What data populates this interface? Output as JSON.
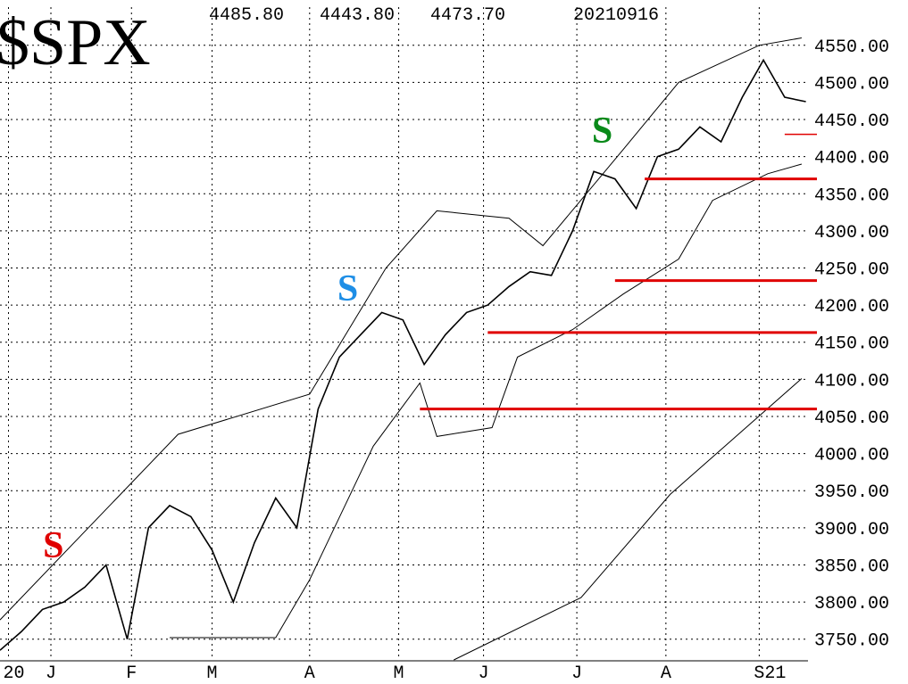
{
  "chart_data": {
    "type": "line",
    "title": "$SPX",
    "header": [
      "4485.80",
      "4443.80",
      "4473.70",
      "20210916"
    ],
    "xlim": [
      -12,
      178.5
    ],
    "ylim": [
      3722,
      4611
    ],
    "grid": true,
    "xticks": [
      {
        "value": -10,
        "label": "20"
      },
      {
        "value": 0,
        "label": "J"
      },
      {
        "value": 19,
        "label": "F"
      },
      {
        "value": 38,
        "label": "M"
      },
      {
        "value": 61,
        "label": "A"
      },
      {
        "value": 82,
        "label": "M"
      },
      {
        "value": 102,
        "label": "J"
      },
      {
        "value": 124,
        "label": "J"
      },
      {
        "value": 145,
        "label": "A"
      },
      {
        "value": 167,
        "label": "S21"
      }
    ],
    "yticks": [
      {
        "value": 3750,
        "label": "3750.00"
      },
      {
        "value": 3800,
        "label": "3800.00"
      },
      {
        "value": 3850,
        "label": "3850.00"
      },
      {
        "value": 3900,
        "label": "3900.00"
      },
      {
        "value": 3950,
        "label": "3950.00"
      },
      {
        "value": 4000,
        "label": "4000.00"
      },
      {
        "value": 4050,
        "label": "4050.00"
      },
      {
        "value": 4100,
        "label": "4100.00"
      },
      {
        "value": 4150,
        "label": "4150.00"
      },
      {
        "value": 4200,
        "label": "4200.00"
      },
      {
        "value": 4250,
        "label": "4250.00"
      },
      {
        "value": 4300,
        "label": "4300.00"
      },
      {
        "value": 4350,
        "label": "4350.00"
      },
      {
        "value": 4400,
        "label": "4400.00"
      },
      {
        "value": 4450,
        "label": "4450.00"
      },
      {
        "value": 4500,
        "label": "4500.00"
      },
      {
        "value": 4550,
        "label": "4550.00"
      }
    ],
    "series": [
      {
        "color": "#000000",
        "x": [
          -12,
          -7,
          -2,
          3,
          8,
          13,
          18,
          23,
          28,
          33,
          38,
          43,
          48,
          53,
          58,
          63,
          68,
          73,
          78,
          83,
          88,
          93,
          98,
          103,
          108,
          113,
          118,
          123,
          128,
          133,
          138,
          143,
          148,
          153,
          158,
          163,
          168,
          173,
          178
        ],
        "values": [
          3735,
          3760,
          3790,
          3800,
          3820,
          3850,
          3750,
          3900,
          3930,
          3915,
          3870,
          3800,
          3880,
          3940,
          3900,
          4060,
          4130,
          4160,
          4190,
          4180,
          4120,
          4160,
          4190,
          4200,
          4225,
          4245,
          4240,
          4300,
          4380,
          4370,
          4330,
          4400,
          4410,
          4440,
          4420,
          4480,
          4530,
          4480,
          4474
        ]
      },
      {
        "color": "#000000",
        "x": [
          -12,
          30,
          61,
          79,
          91,
          108,
          116,
          135,
          148,
          167,
          177
        ],
        "values": [
          3776,
          4026,
          4080,
          4250,
          4327,
          4317,
          4280,
          4410,
          4500,
          4550,
          4560
        ]
      },
      {
        "color": "#000000",
        "x": [
          28,
          53,
          61,
          76,
          87,
          91,
          104,
          110,
          123,
          135,
          148,
          156,
          169,
          177
        ],
        "values": [
          3752,
          3752,
          3830,
          4010,
          4095,
          4023,
          4035,
          4130,
          4167,
          4215,
          4262,
          4341,
          4377,
          4390
        ]
      },
      {
        "color": "#000000",
        "x": [
          95,
          125,
          146,
          177
        ],
        "values": [
          3722,
          3806,
          3945,
          4101
        ]
      }
    ],
    "support_levels": {
      "color": "#e00000",
      "values": [
        4430,
        4370,
        4233,
        4163,
        4060
      ],
      "start": [
        173,
        140,
        133,
        103,
        87
      ]
    },
    "annotations": [
      {
        "text": "S",
        "color": "#e00000",
        "x": 0.6,
        "y": 3878
      },
      {
        "text": "S",
        "color": "#1e8ee6",
        "x": 70,
        "y": 4224
      },
      {
        "text": "S",
        "color": "#0a8a1a",
        "x": 130,
        "y": 4437
      }
    ]
  }
}
